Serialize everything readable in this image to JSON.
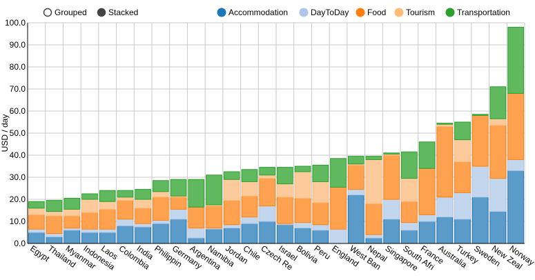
{
  "chart_data": {
    "type": "bar",
    "stacked": true,
    "title": "",
    "xlabel": "",
    "ylabel": "USD / day",
    "ylim": [
      0,
      100
    ],
    "yticks": [
      "0.0",
      "10.0",
      "20.0",
      "30.0",
      "40.0",
      "50.0",
      "60.0",
      "70.0",
      "80.0",
      "90.0",
      "100.0"
    ],
    "mode_controls": [
      {
        "label": "Grouped",
        "selected": false
      },
      {
        "label": "Stacked",
        "selected": true
      }
    ],
    "categories": [
      "Egypt",
      "Thailand",
      "Myanmar",
      "Indonesia",
      "Laos",
      "Colombia",
      "India",
      "Philippines",
      "Germany",
      "Argentina",
      "Namibia",
      "Jordan",
      "Chile",
      "Czech Republic",
      "Israel",
      "Bolivia",
      "Peru",
      "England",
      "West Bank",
      "Nepal",
      "Singapore",
      "South Africa",
      "France",
      "Australia",
      "Turkey",
      "Sweden",
      "New Zealand",
      "Norway"
    ],
    "tick_labels": [
      "Egypt",
      "Thailand",
      "Myanmar",
      "Indonesia",
      "Laos",
      "Colombia",
      "India",
      "Philippin",
      "Germany",
      "Argentina",
      "Namibia",
      "Jordan",
      "Chile",
      "Czech Re",
      "Israel",
      "Bolivia",
      "Peru",
      "England",
      "West Ban",
      "Nepal",
      "Singapore",
      "South Afri",
      "France",
      "Australia",
      "Turkey",
      "Sweden",
      "New Zeal",
      "Norway"
    ],
    "series": [
      {
        "name": "Accommodation",
        "color": "#1f77b4",
        "fill": "#5b9bca",
        "values": [
          5.0,
          3.0,
          6.0,
          5.0,
          5.0,
          8.0,
          7.5,
          9.0,
          11.0,
          2.5,
          6.5,
          7.0,
          9.0,
          10.0,
          8.5,
          7.0,
          6.0,
          0.0,
          22.0,
          2.5,
          11.0,
          6.0,
          10.0,
          12.0,
          11.0,
          21.0,
          14.5,
          33.0
        ]
      },
      {
        "name": "DayToDay",
        "color": "#aec7e8",
        "fill": "#c2d6ee",
        "values": [
          1.5,
          1.5,
          1.0,
          1.5,
          1.5,
          3.0,
          1.5,
          1.5,
          4.5,
          4.5,
          0.5,
          1.5,
          3.0,
          7.0,
          0.5,
          2.5,
          2.5,
          6.5,
          2.5,
          1.5,
          9.0,
          3.5,
          3.0,
          9.0,
          12.0,
          14.0,
          15.0,
          5.0
        ]
      },
      {
        "name": "Food",
        "color": "#ff7f0e",
        "fill": "#fea24f",
        "values": [
          6.5,
          8.0,
          5.5,
          7.5,
          9.0,
          8.5,
          7.0,
          10.5,
          5.5,
          9.5,
          10.0,
          11.0,
          9.5,
          12.5,
          12.0,
          11.0,
          10.0,
          19.0,
          11.0,
          14.0,
          20.0,
          9.5,
          21.0,
          32.0,
          14.0,
          23.0,
          24.0,
          30.0
        ]
      },
      {
        "name": "Tourism",
        "color": "#ffbb78",
        "fill": "#fdcb9b",
        "values": [
          3.0,
          2.0,
          3.0,
          6.0,
          3.5,
          1.5,
          4.0,
          2.5,
          0.5,
          0.0,
          0.5,
          9.5,
          6.5,
          1.5,
          6.0,
          12.0,
          9.5,
          0.0,
          0.5,
          20.0,
          0.5,
          10.5,
          0.0,
          1.0,
          10.0,
          0.0,
          3.0,
          0.0
        ]
      },
      {
        "name": "Transportation",
        "color": "#2ca02c",
        "fill": "#60b85f",
        "values": [
          3.0,
          5.0,
          5.0,
          2.5,
          5.0,
          3.0,
          4.5,
          5.0,
          7.5,
          12.5,
          13.5,
          3.5,
          5.5,
          3.5,
          7.5,
          2.5,
          7.5,
          13.0,
          3.5,
          1.5,
          0.5,
          12.0,
          12.0,
          0.5,
          8.0,
          0.5,
          14.5,
          30.0
        ]
      }
    ],
    "grid": true,
    "legend_position": "top-right"
  }
}
